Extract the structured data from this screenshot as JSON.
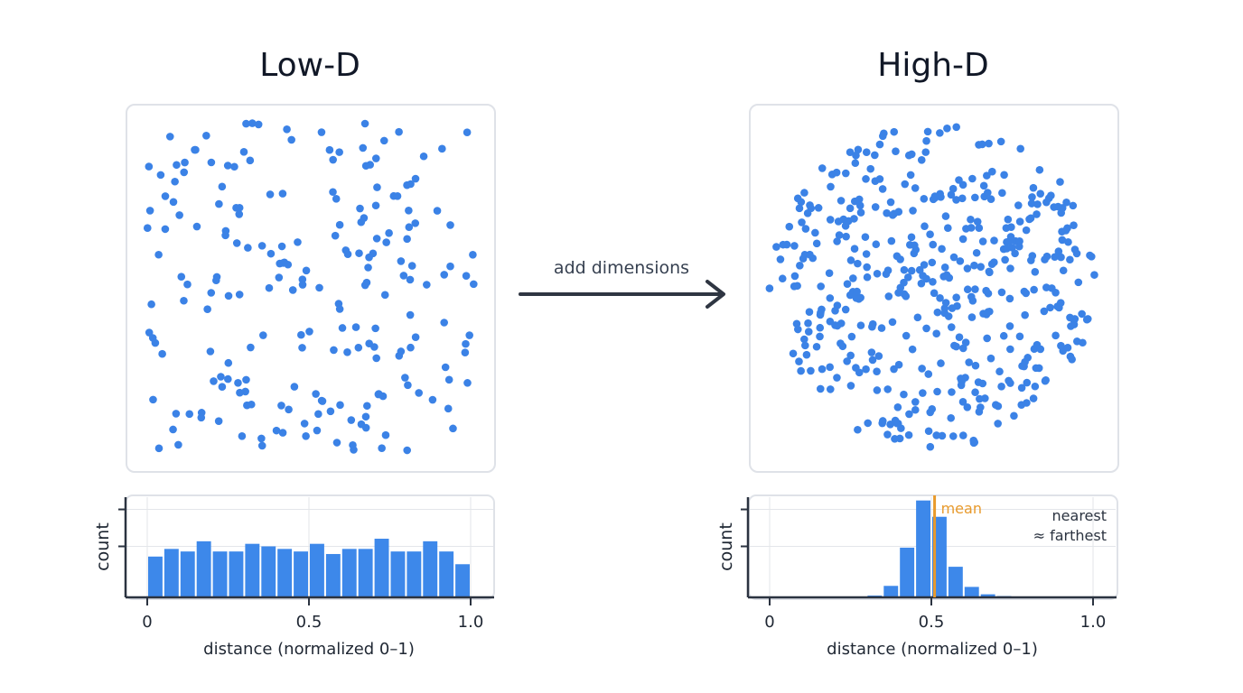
{
  "left": {
    "title": "Low-D",
    "scatter": {
      "type": "scatter",
      "distribution": "uniform square"
    },
    "histogram": {
      "type": "bar",
      "bin_width": 0.05,
      "bin_start": 0.0,
      "values": [
        16,
        19,
        18,
        22,
        18,
        18,
        21,
        20,
        19,
        18,
        21,
        17,
        19,
        19,
        23,
        18,
        18,
        22,
        18,
        13
      ],
      "xlim": [
        0,
        1.0
      ],
      "ylim": [
        0,
        40
      ],
      "xticks": [
        "0",
        "0.5",
        "1.0"
      ],
      "xlabel": "distance (normalized 0–1)",
      "ylabel": "count",
      "grid": true
    }
  },
  "arrow": {
    "label": "add dimensions"
  },
  "right": {
    "title": "High-D",
    "scatter": {
      "type": "scatter",
      "distribution": "disk"
    },
    "histogram": {
      "type": "bar",
      "bin_width": 0.05,
      "bin_start": 0.3,
      "values": [
        0.7,
        4.5,
        19.5,
        38,
        31.6,
        12,
        4.1,
        1.2,
        0.5
      ],
      "xlim": [
        0,
        1.0
      ],
      "ylim": [
        0,
        40
      ],
      "xticks": [
        "0",
        "0.5",
        "1.0"
      ],
      "xlabel": "distance (normalized 0–1)",
      "ylabel": "count",
      "mean": 0.51,
      "mean_label": "mean",
      "annotation_line1": "nearest",
      "annotation_line2": "≈ farthest",
      "grid": true
    }
  },
  "colors": {
    "point": "#3b82e6",
    "bar": "#3d88ea",
    "mean": "#e89a2c",
    "axis": "#2b3340",
    "grid": "#e3e6ea",
    "border": "#dfe2e8"
  }
}
